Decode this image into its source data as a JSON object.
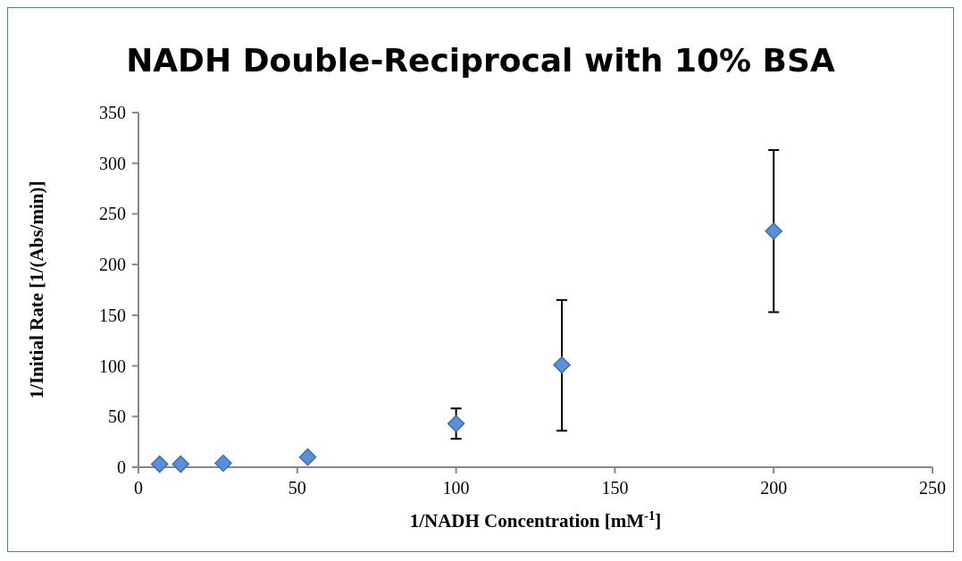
{
  "chart_data": {
    "type": "scatter",
    "title": "NADH Double-Reciprocal with 10% BSA",
    "xlabel": "1/NADH Concentration [mM$^{-1}$]",
    "ylabel": "1/Initial Rate [1/(Abs/min)]",
    "x": [
      6.67,
      13.3,
      26.7,
      53.3,
      100,
      133.3,
      200
    ],
    "series": [
      {
        "color": "#5b8fd6",
        "values": [
          3,
          3,
          4,
          10,
          43,
          101,
          233
        ],
        "errors": [
          null,
          null,
          null,
          null,
          [
            28,
            58
          ],
          [
            36,
            165
          ],
          [
            153,
            313
          ]
        ]
      }
    ],
    "xlim": [
      0,
      250
    ],
    "xticks": [
      0,
      50,
      100,
      150,
      200,
      250
    ],
    "ylim": [
      0,
      350
    ],
    "yticks": [
      0,
      50,
      100,
      150,
      200,
      250,
      300,
      350
    ],
    "grid": false,
    "marker": "diamond"
  }
}
